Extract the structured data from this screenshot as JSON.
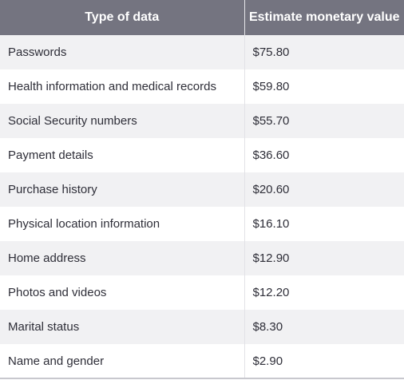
{
  "table": {
    "headers": [
      "Type of data",
      "Estimate monetary value"
    ],
    "rows": [
      {
        "type": "Passwords",
        "value": "$75.80"
      },
      {
        "type": "Health information and medical records",
        "value": "$59.80"
      },
      {
        "type": "Social Security numbers",
        "value": "$55.70"
      },
      {
        "type": "Payment details",
        "value": "$36.60"
      },
      {
        "type": "Purchase history",
        "value": "$20.60"
      },
      {
        "type": "Physical location information",
        "value": "$16.10"
      },
      {
        "type": "Home address",
        "value": "$12.90"
      },
      {
        "type": "Photos and videos",
        "value": "$12.20"
      },
      {
        "type": "Marital status",
        "value": "$8.30"
      },
      {
        "type": "Name and gender",
        "value": "$2.90"
      }
    ]
  },
  "colors": {
    "header_bg": "#747480",
    "stripe_bg": "#f1f1f3",
    "text": "#2e2e38"
  }
}
